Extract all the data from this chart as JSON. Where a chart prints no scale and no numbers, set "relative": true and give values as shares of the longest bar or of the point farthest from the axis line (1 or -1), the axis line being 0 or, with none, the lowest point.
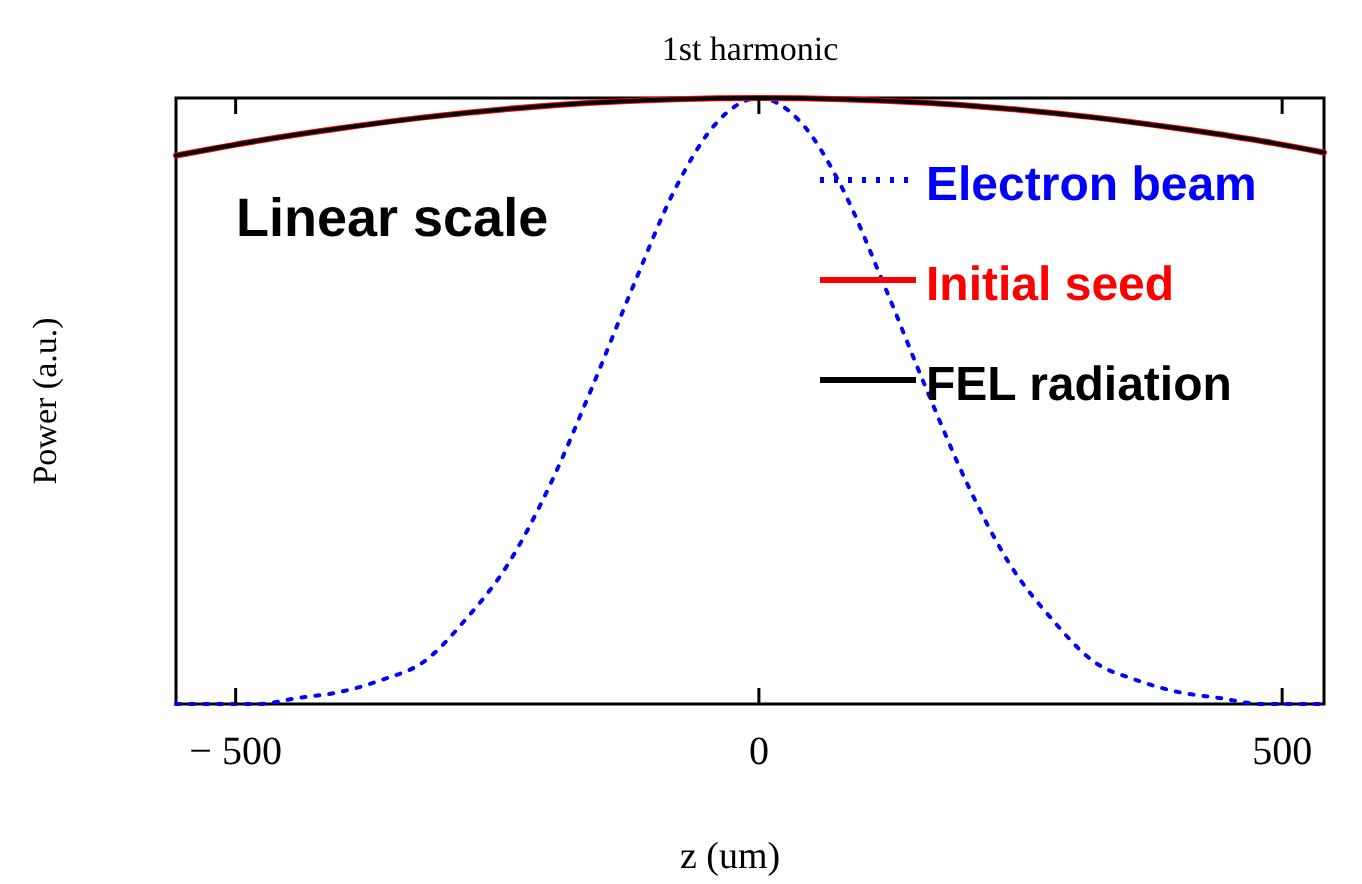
{
  "chart_data": {
    "type": "line",
    "title": "1st harmonic",
    "xlabel": "z (um)",
    "ylabel": "Power (a.u.)",
    "relative": true,
    "xlim": [
      -557,
      540
    ],
    "xticks": [
      {
        "value": -500,
        "label": "− 500"
      },
      0,
      500
    ],
    "legend": "top right",
    "grid": false,
    "annotations": [
      "Linear scale"
    ],
    "series": [
      {
        "name": "Electron beam",
        "color": "#0000ff",
        "line_style": "dotted",
        "x": [
          -557,
          -520,
          -480,
          -440,
          -400,
          -360,
          -320,
          -280,
          -240,
          -200,
          -160,
          -120,
          -80,
          -40,
          0,
          40,
          80,
          120,
          160,
          200,
          240,
          280,
          320,
          360,
          400,
          440,
          480,
          520,
          540
        ],
        "values": [
          0,
          0,
          0,
          0.01,
          0.02,
          0.04,
          0.07,
          0.14,
          0.23,
          0.36,
          0.52,
          0.69,
          0.85,
          0.96,
          1,
          0.96,
          0.85,
          0.69,
          0.52,
          0.36,
          0.23,
          0.14,
          0.07,
          0.04,
          0.02,
          0.01,
          0,
          0,
          0
        ]
      },
      {
        "name": "Initial seed",
        "color": "#ff0000",
        "line_style": "solid",
        "x": [
          -557,
          -480,
          -400,
          -320,
          -240,
          -160,
          -80,
          0,
          80,
          160,
          240,
          320,
          400,
          480,
          540
        ],
        "values": [
          0.905,
          0.929,
          0.95,
          0.968,
          0.982,
          0.992,
          0.998,
          1,
          0.998,
          0.992,
          0.982,
          0.968,
          0.95,
          0.929,
          0.91
        ]
      },
      {
        "name": "FEL radiation",
        "color": "#000000",
        "line_style": "solid",
        "x": [
          -557,
          -480,
          -400,
          -320,
          -240,
          -160,
          -80,
          0,
          80,
          160,
          240,
          320,
          400,
          480,
          540
        ],
        "values": [
          0.905,
          0.929,
          0.95,
          0.968,
          0.982,
          0.992,
          0.998,
          1,
          0.998,
          0.992,
          0.982,
          0.968,
          0.95,
          0.929,
          0.91
        ]
      }
    ]
  }
}
